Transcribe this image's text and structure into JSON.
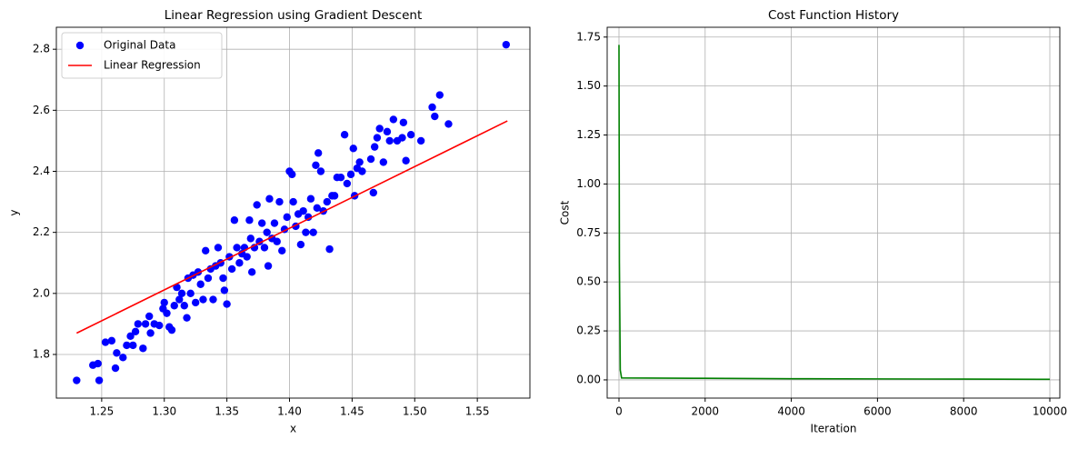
{
  "chart_data": [
    {
      "type": "scatter",
      "title": "Linear Regression using Gradient Descent",
      "xlabel": "x",
      "ylabel": "y",
      "xlim": [
        1.2138,
        1.592
      ],
      "ylim": [
        1.657,
        2.872
      ],
      "xticks": [
        1.25,
        {
          "value": 1.3,
          "label": "1.30"
        },
        1.35,
        {
          "value": 1.4,
          "label": "1.40"
        },
        1.45,
        {
          "value": 1.5,
          "label": "1.50"
        },
        1.55
      ],
      "yticks": [
        1.8,
        {
          "value": 2.0,
          "label": "2.0"
        },
        2.2,
        2.4,
        2.6,
        2.8
      ],
      "grid": true,
      "legend": "upper left",
      "series": [
        {
          "name": "Original Data",
          "type": "scatter",
          "color": "#0000ff",
          "x": [
            1.23,
            1.243,
            1.247,
            1.248,
            1.253,
            1.258,
            1.261,
            1.262,
            1.267,
            1.27,
            1.273,
            1.275,
            1.277,
            1.279,
            1.283,
            1.285,
            1.288,
            1.289,
            1.292,
            1.296,
            1.299,
            1.3,
            1.302,
            1.304,
            1.306,
            1.308,
            1.31,
            1.312,
            1.314,
            1.316,
            1.318,
            1.319,
            1.321,
            1.323,
            1.325,
            1.327,
            1.329,
            1.331,
            1.333,
            1.335,
            1.337,
            1.339,
            1.341,
            1.343,
            1.345,
            1.347,
            1.348,
            1.35,
            1.352,
            1.354,
            1.356,
            1.358,
            1.36,
            1.362,
            1.364,
            1.366,
            1.368,
            1.369,
            1.37,
            1.372,
            1.374,
            1.376,
            1.378,
            1.38,
            1.382,
            1.383,
            1.384,
            1.386,
            1.388,
            1.39,
            1.392,
            1.394,
            1.396,
            1.398,
            1.4,
            1.402,
            1.403,
            1.405,
            1.407,
            1.409,
            1.411,
            1.413,
            1.415,
            1.417,
            1.419,
            1.421,
            1.422,
            1.423,
            1.425,
            1.427,
            1.43,
            1.432,
            1.434,
            1.436,
            1.438,
            1.441,
            1.444,
            1.446,
            1.449,
            1.451,
            1.452,
            1.454,
            1.456,
            1.458,
            1.465,
            1.467,
            1.468,
            1.47,
            1.472,
            1.475,
            1.478,
            1.48,
            1.483,
            1.486,
            1.49,
            1.491,
            1.493,
            1.497,
            1.505,
            1.514,
            1.516,
            1.52,
            1.527,
            1.573
          ],
          "values": [
            1.715,
            1.765,
            1.77,
            1.715,
            1.84,
            1.845,
            1.755,
            1.805,
            1.79,
            1.83,
            1.86,
            1.83,
            1.875,
            1.9,
            1.82,
            1.9,
            1.925,
            1.87,
            1.9,
            1.895,
            1.95,
            1.97,
            1.935,
            1.89,
            1.88,
            1.96,
            2.02,
            1.98,
            2.0,
            1.96,
            1.92,
            2.05,
            2.0,
            2.06,
            1.97,
            2.07,
            2.03,
            1.98,
            2.14,
            2.05,
            2.08,
            1.98,
            2.09,
            2.15,
            2.1,
            2.05,
            2.01,
            1.965,
            2.12,
            2.08,
            2.24,
            2.15,
            2.1,
            2.13,
            2.15,
            2.12,
            2.24,
            2.18,
            2.07,
            2.15,
            2.29,
            2.17,
            2.23,
            2.15,
            2.2,
            2.09,
            2.31,
            2.18,
            2.23,
            2.17,
            2.3,
            2.14,
            2.21,
            2.25,
            2.4,
            2.39,
            2.3,
            2.22,
            2.26,
            2.16,
            2.27,
            2.2,
            2.25,
            2.31,
            2.2,
            2.42,
            2.28,
            2.46,
            2.4,
            2.27,
            2.3,
            2.145,
            2.32,
            2.32,
            2.38,
            2.38,
            2.52,
            2.36,
            2.39,
            2.475,
            2.32,
            2.41,
            2.43,
            2.4,
            2.44,
            2.33,
            2.48,
            2.51,
            2.54,
            2.43,
            2.53,
            2.5,
            2.57,
            2.5,
            2.51,
            2.56,
            2.435,
            2.52,
            2.5,
            2.61,
            2.58,
            2.65,
            2.555,
            2.815
          ]
        },
        {
          "name": "Linear Regression",
          "type": "line",
          "color": "#ff0000",
          "x": [
            1.23,
            1.574
          ],
          "values": [
            1.87,
            2.565
          ]
        }
      ]
    },
    {
      "type": "line",
      "title": "Cost Function History",
      "xlabel": "Iteration",
      "ylabel": "Cost",
      "xlim": [
        -274,
        10232
      ],
      "ylim": [
        -0.093,
        1.8
      ],
      "xticks": [
        0,
        2000,
        4000,
        6000,
        8000,
        10000
      ],
      "yticks": [
        {
          "value": 0,
          "label": "0.00"
        },
        {
          "value": 0.25,
          "label": "0.25"
        },
        {
          "value": 0.5,
          "label": "0.50"
        },
        {
          "value": 0.75,
          "label": "0.75"
        },
        {
          "value": 1.0,
          "label": "1.00"
        },
        {
          "value": 1.25,
          "label": "1.25"
        },
        {
          "value": 1.5,
          "label": "1.50"
        },
        {
          "value": 1.75,
          "label": "1.75"
        }
      ],
      "grid": true,
      "series": [
        {
          "type": "line",
          "color": "#008000",
          "x": [
            0,
            10,
            30,
            60,
            2000,
            4000,
            6000,
            8000,
            10000
          ],
          "values": [
            1.71,
            0.6,
            0.05,
            0.01,
            0.008,
            0.006,
            0.005,
            0.004,
            0.003
          ]
        }
      ]
    }
  ]
}
